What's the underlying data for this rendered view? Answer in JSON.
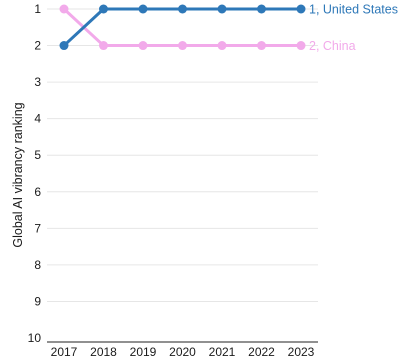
{
  "chart_data": {
    "type": "line",
    "ylabel": "Global AI vibrancy ranking",
    "xlabel": "",
    "x": [
      "2017",
      "2018",
      "2019",
      "2020",
      "2021",
      "2022",
      "2023"
    ],
    "ylim": [
      1,
      10
    ],
    "y_inverted": true,
    "y_ticks": [
      "1",
      "2",
      "3",
      "4",
      "5",
      "6",
      "7",
      "8",
      "9",
      "10"
    ],
    "grid": "horizontal",
    "series": [
      {
        "end_label": "1, United States",
        "color": "#2e78b8",
        "values": [
          2,
          1,
          1,
          1,
          1,
          1,
          1
        ]
      },
      {
        "end_label": "2, China",
        "color": "#f2aaea",
        "values": [
          1,
          2,
          2,
          2,
          2,
          2,
          2
        ]
      }
    ]
  }
}
